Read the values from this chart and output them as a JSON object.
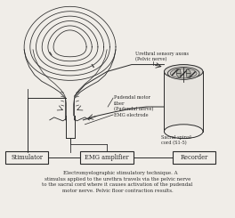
{
  "background_color": "#f0ede8",
  "title_text": "    Electromyelographic stimulatory technique. A\nstimulus applied to the urethra travels via the pelvic nerve\nto the sacral cord where it causes activation of the pudendal\nmotor nerve. Pelvic floor contraction results.",
  "label_urethral": "Urethral sensory axons\n(Pelvic nerve)",
  "label_pudendal_motor": "Pudendal motor\nfiber\n(Pudendal nerve)",
  "label_emg_electrode": "EMG electrode",
  "label_sacral": "Sacral spinal\ncord (S1-5)",
  "label_stimulator": "Stimulator",
  "label_emg_amp": "EMG amplifier",
  "label_recorder": "Recorder",
  "line_color": "#2a2a2a",
  "box_color": "#f0ede8",
  "box_edge": "#2a2a2a",
  "fig_width": 2.64,
  "fig_height": 2.45,
  "dpi": 100
}
